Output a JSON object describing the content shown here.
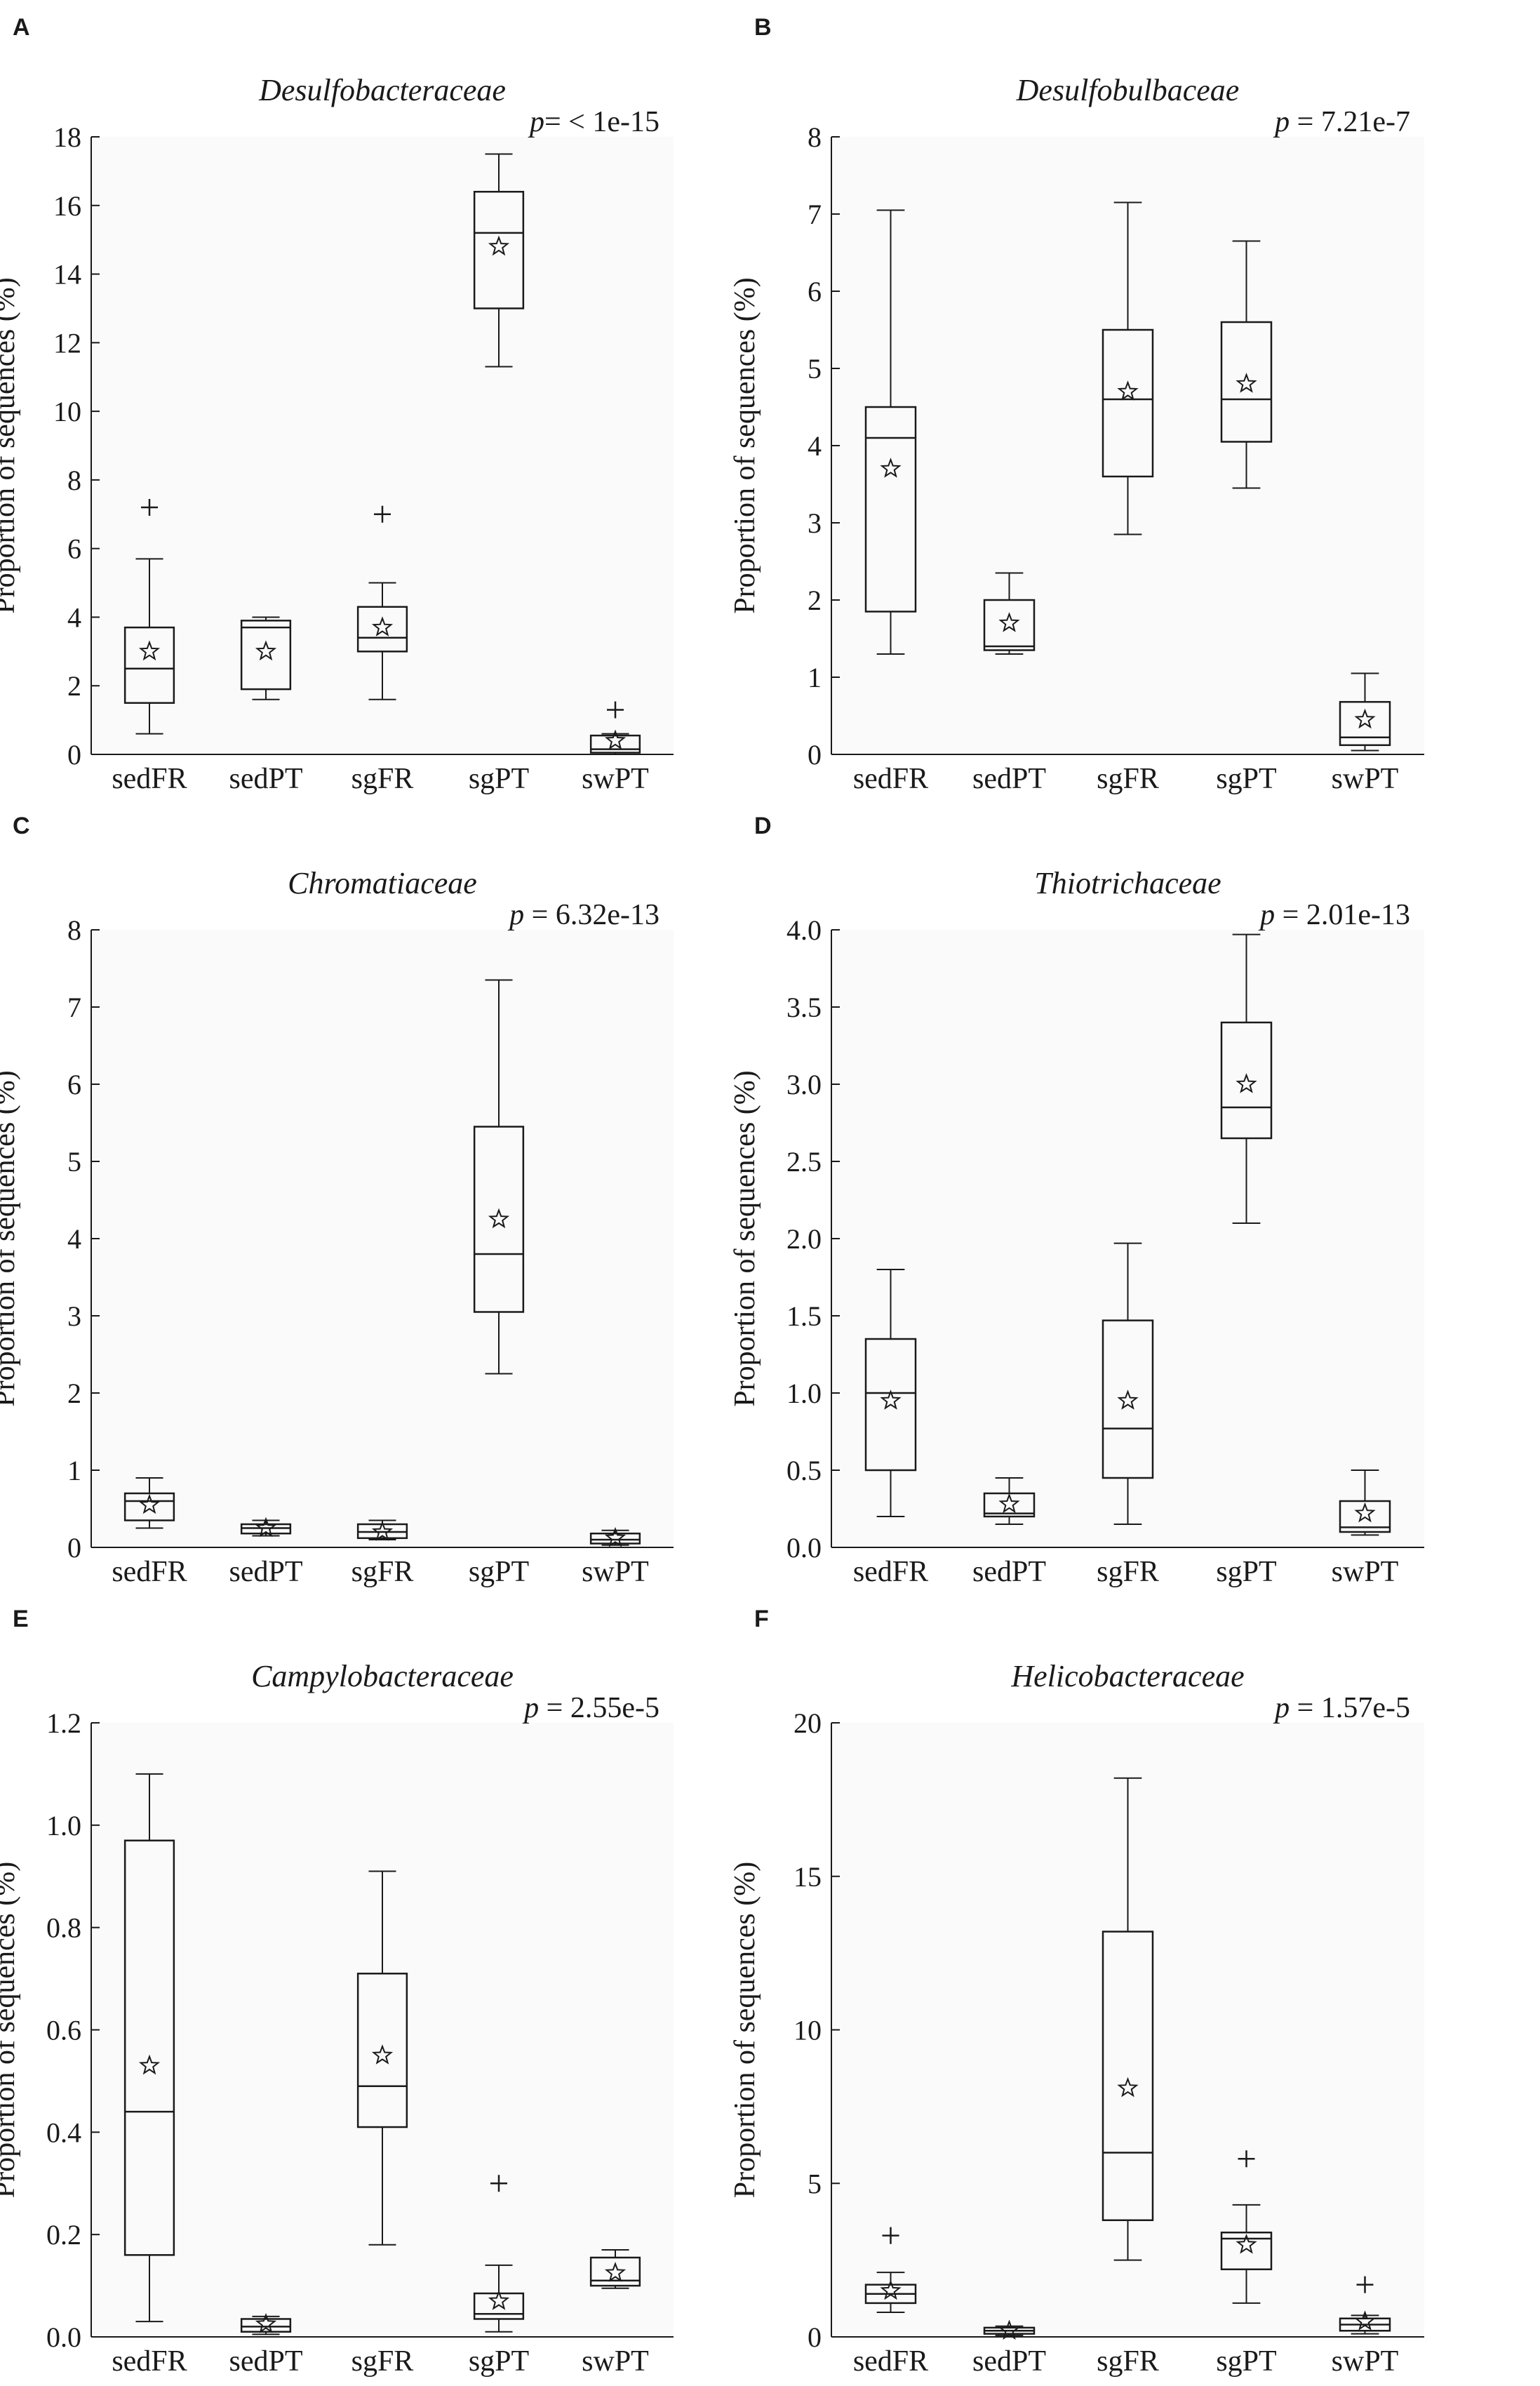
{
  "figure": {
    "panel_bg": "#fafafa",
    "stroke": "#1a1a1a"
  },
  "chart_data": [
    {
      "type": "boxplot",
      "panel_label": "A",
      "title": "Desulfobacteraceae",
      "p_text": "p= < 1e-15",
      "ylabel": "Proportion of sequences (%)",
      "ylim": [
        0,
        18
      ],
      "yticks": [
        0,
        2,
        4,
        6,
        8,
        10,
        12,
        14,
        16,
        18
      ],
      "categories": [
        "sedFR",
        "sedPT",
        "sgFR",
        "sgPT",
        "swPT"
      ],
      "boxes": [
        {
          "whisker_low": 0.6,
          "q1": 1.5,
          "median": 2.5,
          "q3": 3.7,
          "whisker_high": 5.7,
          "mean": 3.0,
          "outliers": [
            7.2
          ]
        },
        {
          "whisker_low": 1.6,
          "q1": 1.9,
          "median": 3.7,
          "q3": 3.9,
          "whisker_high": 4.0,
          "mean": 3.0,
          "outliers": []
        },
        {
          "whisker_low": 1.6,
          "q1": 3.0,
          "median": 3.4,
          "q3": 4.3,
          "whisker_high": 5.0,
          "mean": 3.7,
          "outliers": [
            7.0
          ]
        },
        {
          "whisker_low": 11.3,
          "q1": 13.0,
          "median": 15.2,
          "q3": 16.4,
          "whisker_high": 17.5,
          "mean": 14.8,
          "outliers": []
        },
        {
          "whisker_low": 0.0,
          "q1": 0.05,
          "median": 0.15,
          "q3": 0.55,
          "whisker_high": 0.6,
          "mean": 0.4,
          "outliers": [
            1.3
          ]
        }
      ]
    },
    {
      "type": "boxplot",
      "panel_label": "B",
      "title": "Desulfobulbaceae",
      "p_text": "p = 7.21e-7",
      "ylabel": "Proportion of sequences (%)",
      "ylim": [
        0,
        8
      ],
      "yticks": [
        0,
        1,
        2,
        3,
        4,
        5,
        6,
        7,
        8
      ],
      "categories": [
        "sedFR",
        "sedPT",
        "sgFR",
        "sgPT",
        "swPT"
      ],
      "boxes": [
        {
          "whisker_low": 1.3,
          "q1": 1.85,
          "median": 4.1,
          "q3": 4.5,
          "whisker_high": 7.05,
          "mean": 3.7,
          "outliers": []
        },
        {
          "whisker_low": 1.3,
          "q1": 1.35,
          "median": 1.4,
          "q3": 2.0,
          "whisker_high": 2.35,
          "mean": 1.7,
          "outliers": []
        },
        {
          "whisker_low": 2.85,
          "q1": 3.6,
          "median": 4.6,
          "q3": 5.5,
          "whisker_high": 7.15,
          "mean": 4.7,
          "outliers": []
        },
        {
          "whisker_low": 3.45,
          "q1": 4.05,
          "median": 4.6,
          "q3": 5.6,
          "whisker_high": 6.65,
          "mean": 4.8,
          "outliers": []
        },
        {
          "whisker_low": 0.05,
          "q1": 0.12,
          "median": 0.22,
          "q3": 0.68,
          "whisker_high": 1.05,
          "mean": 0.45,
          "outliers": []
        }
      ]
    },
    {
      "type": "boxplot",
      "panel_label": "C",
      "title": "Chromatiaceae",
      "p_text": "p = 6.32e-13",
      "ylabel": "Proportion of sequences (%)",
      "ylim": [
        0,
        8
      ],
      "yticks": [
        0,
        1,
        2,
        3,
        4,
        5,
        6,
        7,
        8
      ],
      "categories": [
        "sedFR",
        "sedPT",
        "sgFR",
        "sgPT",
        "swPT"
      ],
      "boxes": [
        {
          "whisker_low": 0.25,
          "q1": 0.35,
          "median": 0.6,
          "q3": 0.7,
          "whisker_high": 0.9,
          "mean": 0.55,
          "outliers": []
        },
        {
          "whisker_low": 0.15,
          "q1": 0.18,
          "median": 0.25,
          "q3": 0.3,
          "whisker_high": 0.35,
          "mean": 0.25,
          "outliers": []
        },
        {
          "whisker_low": 0.1,
          "q1": 0.12,
          "median": 0.2,
          "q3": 0.3,
          "whisker_high": 0.35,
          "mean": 0.2,
          "outliers": []
        },
        {
          "whisker_low": 2.25,
          "q1": 3.05,
          "median": 3.8,
          "q3": 5.45,
          "whisker_high": 7.35,
          "mean": 4.25,
          "outliers": []
        },
        {
          "whisker_low": 0.03,
          "q1": 0.05,
          "median": 0.1,
          "q3": 0.18,
          "whisker_high": 0.22,
          "mean": 0.12,
          "outliers": []
        }
      ]
    },
    {
      "type": "boxplot",
      "panel_label": "D",
      "title": "Thiotrichaceae",
      "p_text": "p = 2.01e-13",
      "ylabel": "Proportion of sequences (%)",
      "ylim": [
        0,
        4
      ],
      "yticks": [
        0.0,
        0.5,
        1.0,
        1.5,
        2.0,
        2.5,
        3.0,
        3.5,
        4.0
      ],
      "categories": [
        "sedFR",
        "sedPT",
        "sgFR",
        "sgPT",
        "swPT"
      ],
      "boxes": [
        {
          "whisker_low": 0.2,
          "q1": 0.5,
          "median": 1.0,
          "q3": 1.35,
          "whisker_high": 1.8,
          "mean": 0.95,
          "outliers": []
        },
        {
          "whisker_low": 0.15,
          "q1": 0.2,
          "median": 0.22,
          "q3": 0.35,
          "whisker_high": 0.45,
          "mean": 0.28,
          "outliers": []
        },
        {
          "whisker_low": 0.15,
          "q1": 0.45,
          "median": 0.77,
          "q3": 1.47,
          "whisker_high": 1.97,
          "mean": 0.95,
          "outliers": []
        },
        {
          "whisker_low": 2.1,
          "q1": 2.65,
          "median": 2.85,
          "q3": 3.4,
          "whisker_high": 3.97,
          "mean": 3.0,
          "outliers": []
        },
        {
          "whisker_low": 0.08,
          "q1": 0.1,
          "median": 0.13,
          "q3": 0.3,
          "whisker_high": 0.5,
          "mean": 0.22,
          "outliers": []
        }
      ]
    },
    {
      "type": "boxplot",
      "panel_label": "E",
      "title": "Campylobacteraceae",
      "p_text": "p = 2.55e-5",
      "ylabel": "Proportion of sequences (%)",
      "ylim": [
        0,
        1.2
      ],
      "yticks": [
        0.0,
        0.2,
        0.4,
        0.6,
        0.8,
        1.0,
        1.2
      ],
      "categories": [
        "sedFR",
        "sedPT",
        "sgFR",
        "sgPT",
        "swPT"
      ],
      "boxes": [
        {
          "whisker_low": 0.03,
          "q1": 0.16,
          "median": 0.44,
          "q3": 0.97,
          "whisker_high": 1.1,
          "mean": 0.53,
          "outliers": []
        },
        {
          "whisker_low": 0.005,
          "q1": 0.01,
          "median": 0.02,
          "q3": 0.035,
          "whisker_high": 0.04,
          "mean": 0.025,
          "outliers": []
        },
        {
          "whisker_low": 0.18,
          "q1": 0.41,
          "median": 0.49,
          "q3": 0.71,
          "whisker_high": 0.91,
          "mean": 0.55,
          "outliers": []
        },
        {
          "whisker_low": 0.01,
          "q1": 0.035,
          "median": 0.045,
          "q3": 0.085,
          "whisker_high": 0.14,
          "mean": 0.07,
          "outliers": [
            0.3
          ]
        },
        {
          "whisker_low": 0.095,
          "q1": 0.1,
          "median": 0.11,
          "q3": 0.155,
          "whisker_high": 0.17,
          "mean": 0.125,
          "outliers": []
        }
      ]
    },
    {
      "type": "boxplot",
      "panel_label": "F",
      "title": "Helicobacteraceae",
      "p_text": "p = 1.57e-5",
      "ylabel": "Proportion of sequences (%)",
      "ylim": [
        0,
        20
      ],
      "yticks": [
        0,
        5,
        10,
        15,
        20
      ],
      "categories": [
        "sedFR",
        "sedPT",
        "sgFR",
        "sgPT",
        "swPT"
      ],
      "boxes": [
        {
          "whisker_low": 0.8,
          "q1": 1.1,
          "median": 1.4,
          "q3": 1.7,
          "whisker_high": 2.1,
          "mean": 1.5,
          "outliers": [
            3.3
          ]
        },
        {
          "whisker_low": 0.05,
          "q1": 0.1,
          "median": 0.2,
          "q3": 0.3,
          "whisker_high": 0.35,
          "mean": 0.2,
          "outliers": []
        },
        {
          "whisker_low": 2.5,
          "q1": 3.8,
          "median": 6.0,
          "q3": 13.2,
          "whisker_high": 18.2,
          "mean": 8.1,
          "outliers": []
        },
        {
          "whisker_low": 1.1,
          "q1": 2.2,
          "median": 3.2,
          "q3": 3.4,
          "whisker_high": 4.3,
          "mean": 3.0,
          "outliers": [
            5.8
          ]
        },
        {
          "whisker_low": 0.1,
          "q1": 0.2,
          "median": 0.4,
          "q3": 0.6,
          "whisker_high": 0.7,
          "mean": 0.5,
          "outliers": [
            1.7
          ]
        }
      ]
    }
  ]
}
